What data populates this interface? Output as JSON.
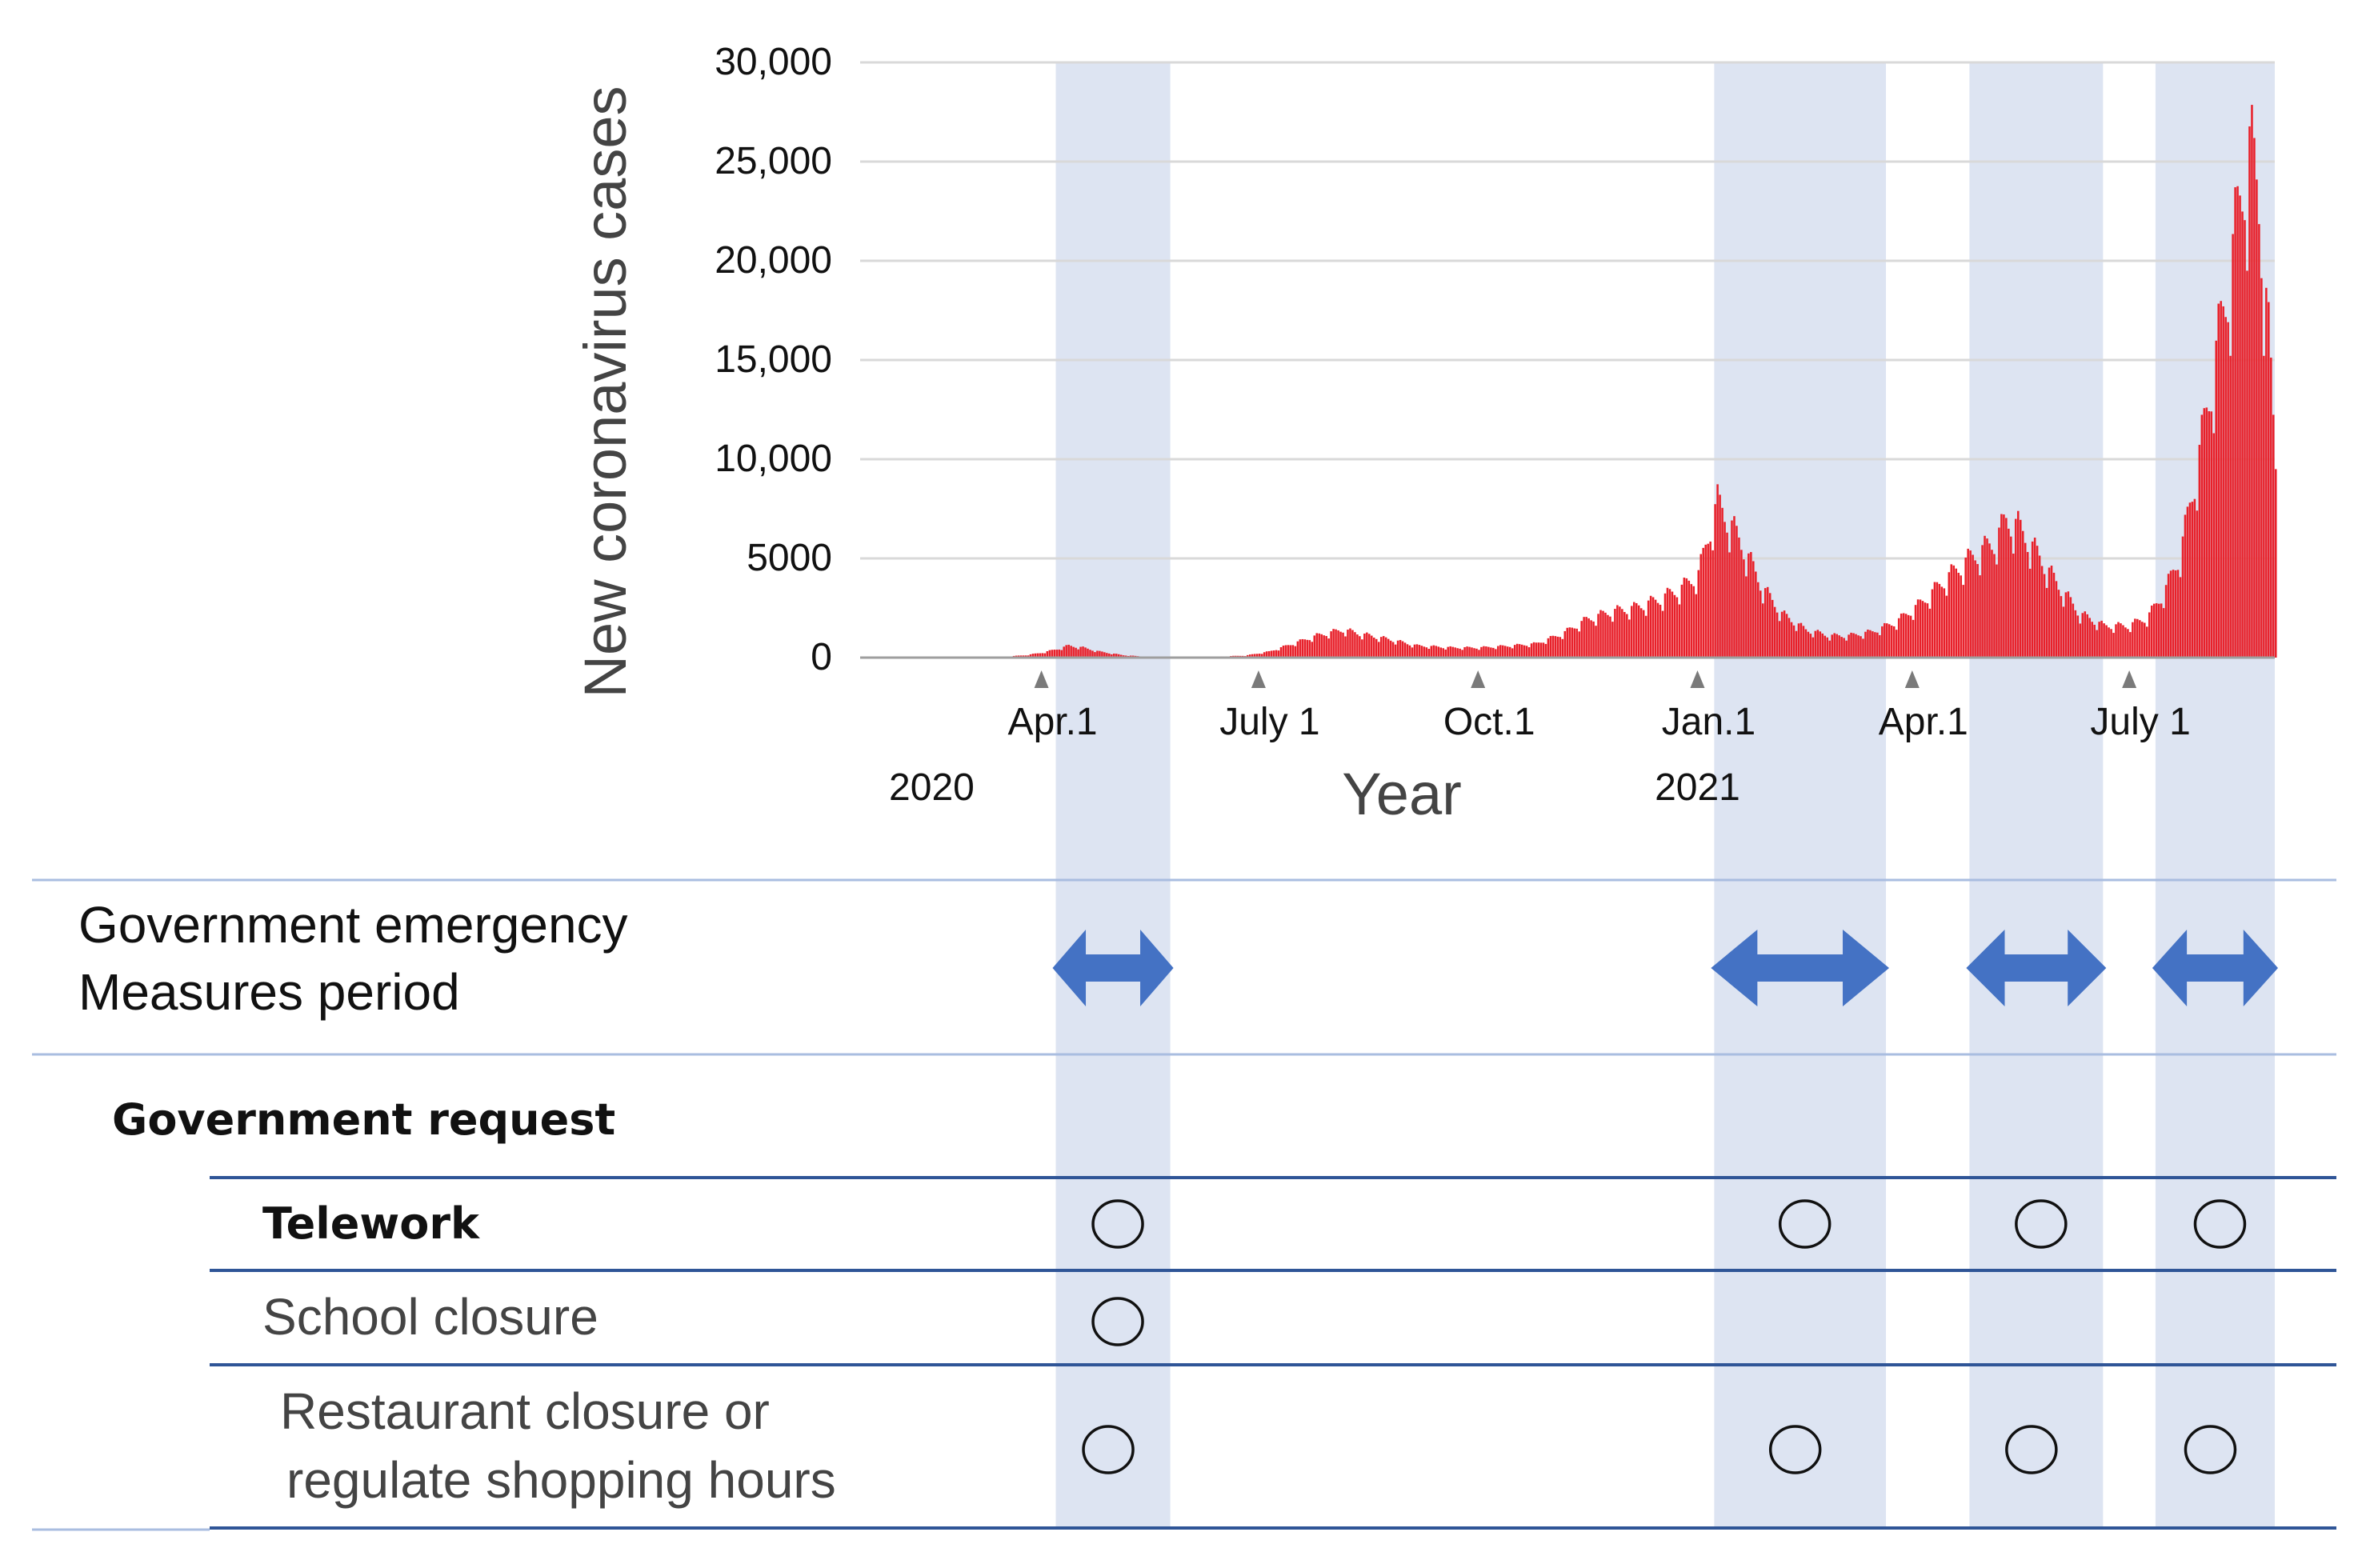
{
  "chart_data": {
    "type": "bar",
    "ylabel": "New coronavirus cases",
    "xlabel": "Year",
    "ylim": [
      0,
      30000
    ],
    "y_ticks": [
      {
        "value": 0,
        "label": "0"
      },
      {
        "value": 5000,
        "label": "5000"
      },
      {
        "value": 10000,
        "label": "10,000"
      },
      {
        "value": 15000,
        "label": "15,000"
      },
      {
        "value": 20000,
        "label": "20,000"
      },
      {
        "value": 25000,
        "label": "25,000"
      },
      {
        "value": 30000,
        "label": "30,000"
      }
    ],
    "x_range": [
      "2020-01-16",
      "2021-08-31"
    ],
    "x_ticks": [
      {
        "date": "2020-04-01",
        "label": "Apr.1"
      },
      {
        "date": "2020-07-01",
        "label": "July 1"
      },
      {
        "date": "2020-10-01",
        "label": "Oct.1"
      },
      {
        "date": "2021-01-01",
        "label": "Jan.1"
      },
      {
        "date": "2021-04-01",
        "label": "Apr.1"
      },
      {
        "date": "2021-07-01",
        "label": "July 1"
      }
    ],
    "year_labels": [
      {
        "date": "2020-02-15",
        "label": "2020"
      },
      {
        "date": "2021-01-01",
        "label": "2021"
      }
    ],
    "grid": true,
    "bar_color": "#e8202a",
    "series": [
      {
        "points": [
          [
            "2020-01-16",
            0
          ],
          [
            "2020-02-15",
            5
          ],
          [
            "2020-03-01",
            15
          ],
          [
            "2020-03-15",
            40
          ],
          [
            "2020-03-25",
            120
          ],
          [
            "2020-04-01",
            250
          ],
          [
            "2020-04-08",
            450
          ],
          [
            "2020-04-12",
            600
          ],
          [
            "2020-04-18",
            500
          ],
          [
            "2020-04-25",
            300
          ],
          [
            "2020-05-05",
            120
          ],
          [
            "2020-05-15",
            40
          ],
          [
            "2020-05-25",
            20
          ],
          [
            "2020-06-10",
            40
          ],
          [
            "2020-06-25",
            100
          ],
          [
            "2020-07-05",
            300
          ],
          [
            "2020-07-15",
            700
          ],
          [
            "2020-07-25",
            1100
          ],
          [
            "2020-08-05",
            1400
          ],
          [
            "2020-08-12",
            1200
          ],
          [
            "2020-08-25",
            900
          ],
          [
            "2020-09-05",
            600
          ],
          [
            "2020-09-20",
            500
          ],
          [
            "2020-10-01",
            500
          ],
          [
            "2020-10-15",
            600
          ],
          [
            "2020-10-25",
            700
          ],
          [
            "2020-11-05",
            1200
          ],
          [
            "2020-11-15",
            1900
          ],
          [
            "2020-11-25",
            2300
          ],
          [
            "2020-12-05",
            2500
          ],
          [
            "2020-12-15",
            2900
          ],
          [
            "2020-12-25",
            3500
          ],
          [
            "2021-01-01",
            4200
          ],
          [
            "2021-01-06",
            6500
          ],
          [
            "2021-01-09",
            7800
          ],
          [
            "2021-01-14",
            6800
          ],
          [
            "2021-01-20",
            5500
          ],
          [
            "2021-01-28",
            3500
          ],
          [
            "2021-02-05",
            2200
          ],
          [
            "2021-02-15",
            1400
          ],
          [
            "2021-02-25",
            1100
          ],
          [
            "2021-03-05",
            1100
          ],
          [
            "2021-03-15",
            1300
          ],
          [
            "2021-03-25",
            1800
          ],
          [
            "2021-04-05",
            2800
          ],
          [
            "2021-04-15",
            4000
          ],
          [
            "2021-04-25",
            5000
          ],
          [
            "2021-05-05",
            5800
          ],
          [
            "2021-05-10",
            6900
          ],
          [
            "2021-05-15",
            6600
          ],
          [
            "2021-05-22",
            5400
          ],
          [
            "2021-06-01",
            3600
          ],
          [
            "2021-06-10",
            2200
          ],
          [
            "2021-06-20",
            1600
          ],
          [
            "2021-06-30",
            1600
          ],
          [
            "2021-07-08",
            2000
          ],
          [
            "2021-07-15",
            3200
          ],
          [
            "2021-07-22",
            5200
          ],
          [
            "2021-07-29",
            9500
          ],
          [
            "2021-08-05",
            14500
          ],
          [
            "2021-08-12",
            19500
          ],
          [
            "2021-08-18",
            24500
          ],
          [
            "2021-08-20",
            25500
          ],
          [
            "2021-08-24",
            23000
          ],
          [
            "2021-08-28",
            16000
          ],
          [
            "2021-08-31",
            10000
          ]
        ]
      }
    ],
    "emergency_periods": [
      {
        "start": "2020-04-07",
        "end": "2020-05-25"
      },
      {
        "start": "2021-01-08",
        "end": "2021-03-21"
      },
      {
        "start": "2021-04-25",
        "end": "2021-06-20"
      },
      {
        "start": "2021-07-12",
        "end": "2021-08-31"
      }
    ],
    "band_color": "#dde4f2"
  },
  "table": {
    "emergency_label_line1": "Government emergency",
    "emergency_label_line2": "Measures period",
    "request_header": "Government request",
    "rows": [
      {
        "label": "Telework",
        "marks": [
          true,
          true,
          true,
          true
        ]
      },
      {
        "label": "School closure",
        "marks": [
          true,
          false,
          false,
          false
        ]
      },
      {
        "label_line1": "Restaurant closure or",
        "label_line2": "regulate shopping hours",
        "marks": [
          true,
          true,
          true,
          true
        ]
      }
    ],
    "arrow_color": "#4472c4",
    "line_color": "#2f5597"
  }
}
